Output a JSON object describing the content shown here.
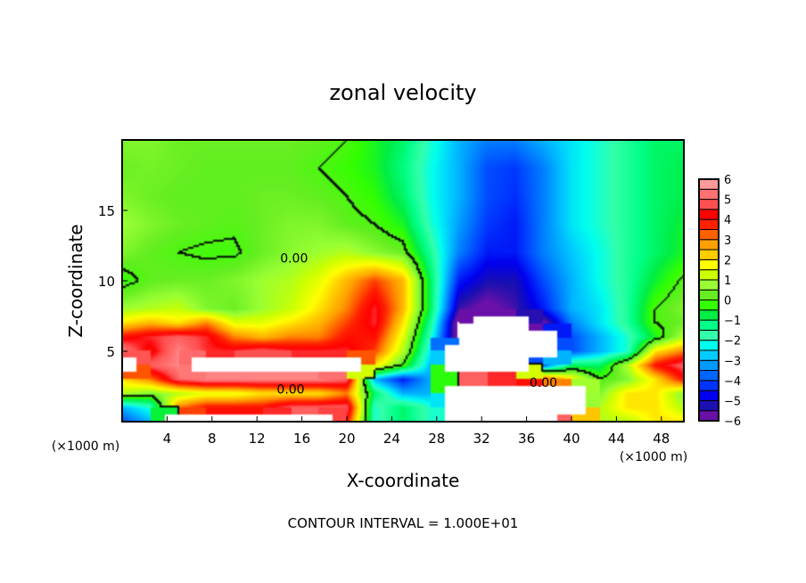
{
  "chart_data": {
    "type": "heatmap",
    "title": "zonal velocity",
    "xlabel": "X-coordinate",
    "ylabel": "Z-coordinate",
    "x_unit_left": "(×1000 m)",
    "x_unit_right": "(×1000 m)",
    "footer": "CONTOUR INTERVAL = 1.000E+01",
    "xlim": [
      0,
      50
    ],
    "ylim": [
      0,
      20
    ],
    "xticks": [
      4,
      8,
      12,
      16,
      20,
      24,
      28,
      32,
      36,
      40,
      44,
      48
    ],
    "yticks": [
      5,
      10,
      15
    ],
    "colorbar": {
      "range": [
        -6,
        6
      ],
      "step": 0.5,
      "labels": [
        "6",
        "5",
        "4",
        "3",
        "2",
        "1",
        "0",
        "−1",
        "−2",
        "−3",
        "−4",
        "−5",
        "−6"
      ],
      "colors_bottom_to_top": [
        "#6a10a8",
        "#1a10b0",
        "#0000ee",
        "#0033ff",
        "#0066ff",
        "#0099ff",
        "#00ccff",
        "#00ffee",
        "#33ffaa",
        "#00ff88",
        "#00ee44",
        "#33ff00",
        "#66ee22",
        "#99ff33",
        "#ccff00",
        "#ffff00",
        "#ffcc00",
        "#ffa000",
        "#ff6000",
        "#ff2000",
        "#ff0000",
        "#ff5050",
        "#ff7070",
        "#ff9a9a"
      ]
    },
    "contour_labels": [
      {
        "text": "0.00",
        "x": 15.3,
        "z": 11.6
      },
      {
        "text": "0.00",
        "x": 15.0,
        "z": 2.3
      },
      {
        "text": "0.00",
        "x": 37.5,
        "z": 2.8
      }
    ],
    "grid_x": [
      0,
      2.5,
      5,
      7.5,
      10,
      12.5,
      15,
      17.5,
      20,
      22.5,
      25,
      27.5,
      30,
      32.5,
      35,
      37.5,
      40,
      42.5,
      45,
      47.5,
      50
    ],
    "grid_z": [
      0,
      1,
      2,
      3,
      4,
      5,
      6,
      7,
      8,
      10,
      12,
      14,
      16,
      18,
      20
    ],
    "values_note": "null = out of colour range (white)",
    "values": [
      [
        -4,
        -3,
        null,
        null,
        null,
        null,
        null,
        null,
        4,
        -2,
        -1,
        -2,
        null,
        null,
        null,
        null,
        5,
        1,
        1,
        2,
        2
      ],
      [
        -3,
        -2,
        3,
        4,
        4,
        4,
        5,
        5,
        5,
        -2,
        -1,
        -2,
        null,
        null,
        null,
        null,
        null,
        1,
        2,
        2,
        1
      ],
      [
        1,
        0.5,
        1,
        1.5,
        1.5,
        2,
        2,
        2,
        3,
        -1,
        -3,
        -3,
        null,
        null,
        null,
        null,
        null,
        0.5,
        2,
        2,
        0.5
      ],
      [
        2,
        3,
        5,
        5.5,
        5.5,
        5.5,
        5.5,
        5.5,
        5,
        -3,
        -4.5,
        -3,
        5,
        5,
        4,
        4,
        2,
        0,
        0.5,
        2,
        4
      ],
      [
        null,
        5,
        5.5,
        null,
        null,
        null,
        null,
        null,
        null,
        2,
        0,
        -3,
        null,
        null,
        null,
        -4,
        -1,
        -1,
        1,
        4,
        5
      ],
      [
        5.5,
        4,
        5.5,
        4.5,
        4.5,
        5,
        4.5,
        4.5,
        4.5,
        3.5,
        1,
        -2.5,
        null,
        null,
        null,
        null,
        -4,
        -3,
        -2,
        2,
        3
      ],
      [
        4,
        4.5,
        5,
        4.5,
        3,
        2.5,
        3,
        3,
        4,
        4,
        1.5,
        -2,
        -6.5,
        null,
        null,
        null,
        -4,
        -3,
        -2,
        -0.5,
        1
      ],
      [
        2,
        2.5,
        2,
        3,
        1.5,
        1.5,
        2,
        2.5,
        3.5,
        4.5,
        2,
        -1.5,
        -6.5,
        null,
        null,
        -6,
        -3.5,
        -2.5,
        -1.5,
        0,
        0.3
      ],
      [
        0.8,
        1,
        1.2,
        0.5,
        0.3,
        0.8,
        1.2,
        2,
        3,
        4.5,
        2.5,
        -1,
        -5.5,
        -6,
        -5.5,
        -4.5,
        -3,
        -2.5,
        -1.5,
        0,
        0.5
      ],
      [
        -0.3,
        0.2,
        0.3,
        0.3,
        0.5,
        0.8,
        1,
        1.5,
        2.5,
        3.5,
        2.5,
        -1,
        -4.5,
        -5.2,
        -5.2,
        -4,
        -3,
        -2.2,
        -1.5,
        -0.6,
        0.1
      ],
      [
        0.5,
        0.2,
        0,
        -0.1,
        -0.1,
        0.3,
        0.6,
        0.8,
        1,
        0.6,
        0.3,
        -1.5,
        -3.5,
        -4.5,
        -4.5,
        -3.5,
        -2.8,
        -2.2,
        -1.5,
        -1,
        -0.5
      ],
      [
        0.8,
        0.5,
        0.3,
        0.2,
        0.1,
        0.3,
        0.5,
        0.5,
        0.2,
        0,
        -0.5,
        -2,
        -3.2,
        -4.2,
        -4.5,
        -3.5,
        -2.5,
        -2,
        -1.5,
        -1,
        -0.6
      ],
      [
        0.5,
        0.3,
        0.2,
        0.2,
        0.2,
        0.3,
        0.3,
        0.2,
        0,
        -0.3,
        -1,
        -2.2,
        -3,
        -4,
        -4.3,
        -3.5,
        -2.5,
        -2,
        -1.5,
        -1,
        -0.8
      ],
      [
        0.3,
        0.4,
        0.3,
        0.2,
        0.2,
        0.2,
        0.2,
        0,
        -0.2,
        -0.5,
        -1.2,
        -2.2,
        -3,
        -4,
        -4.2,
        -3.5,
        -2.5,
        -2,
        -1.5,
        -1,
        -0.8
      ],
      [
        0.5,
        0.5,
        0.3,
        0.3,
        0.3,
        0.3,
        0.3,
        0.2,
        0,
        -0.5,
        -1,
        -2,
        -3,
        -3.5,
        -3.5,
        -3,
        -2.5,
        -2,
        -1.5,
        -1,
        -1
      ]
    ]
  }
}
